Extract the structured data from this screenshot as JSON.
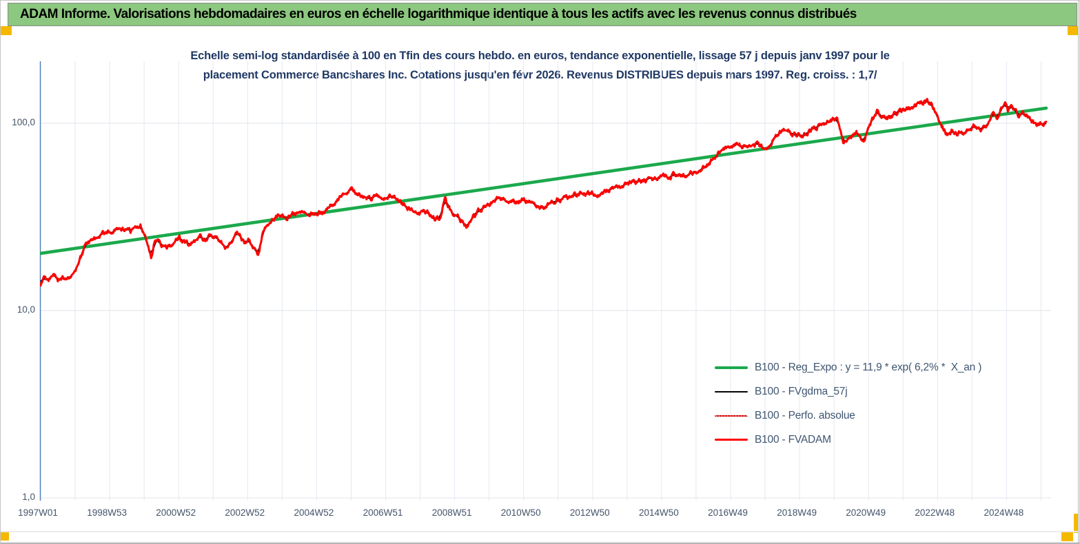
{
  "banner": {
    "title": "ADAM Informe. Valorisations hebdomadaires en euros en échelle logarithmique identique à tous les actifs avec les revenus connus distribués",
    "bg_color": "#8CC87F"
  },
  "chart": {
    "title_line1": "Echelle semi-log standardisée à 100 en Tfin des cours hebdo. en euros, tendance exponentielle, lissage 57 j depuis janv 1997 pour le",
    "title_line2": "placement Commerce Bancshares Inc.  Cotations jusqu'en févr 2026. Revenus DISTRIBUES depuis mars 1997. Reg. croiss. : 1,7/"
  },
  "handles_color": "#F5B800",
  "chart_data": {
    "type": "line",
    "x_axis": {
      "unit": "year",
      "range": [
        1997.0,
        2026.3
      ],
      "gridline_years": [
        1997,
        1998,
        1999,
        2000,
        2001,
        2002,
        2003,
        2004,
        2005,
        2006,
        2007,
        2008,
        2009,
        2010,
        2011,
        2012,
        2013,
        2014,
        2015,
        2016,
        2017,
        2018,
        2019,
        2020,
        2021,
        2022,
        2023,
        2024,
        2025,
        2026
      ],
      "tick_years": [
        1997,
        1999,
        2001,
        2003,
        2005,
        2007,
        2009,
        2011,
        2013,
        2015,
        2017,
        2019,
        2021,
        2023,
        2025
      ],
      "tick_labels": [
        "1997W01",
        "1998W53",
        "2000W52",
        "2002W52",
        "2004W52",
        "2006W51",
        "2008W51",
        "2010W50",
        "2012W50",
        "2014W50",
        "2016W49",
        "2018W49",
        "2020W49",
        "2022W48",
        "2024W48"
      ]
    },
    "y_axis": {
      "scale": "log",
      "range": [
        1,
        214
      ],
      "tick_values": [
        100,
        10,
        1
      ],
      "tick_labels": [
        "100,0",
        "10,0",
        "1,0"
      ]
    },
    "grid": true,
    "legend_position": "inside-right-lower",
    "series": [
      {
        "name": "B100 - Reg_Expo : y = 11,9 * exp( 6,2% *  X_an )",
        "kind": "exponential_trend",
        "color": "#1BA94C",
        "width": 4.6,
        "dash": "solid",
        "points": [
          [
            1997.0,
            20.2
          ],
          [
            2026.15,
            120.5
          ]
        ]
      },
      {
        "name": "B100 - FVgdma_57j",
        "kind": "moving_average_of_FVADAM_57d",
        "color": "#000000",
        "width": 2.2,
        "dash": "solid"
      },
      {
        "name": "B100 - Perfo. absolue",
        "kind": "same_values_as_FVADAM",
        "color": "#D40000",
        "width": 1.2,
        "dash": "dotted"
      },
      {
        "name": "B100 - FVADAM",
        "kind": "weekly_values",
        "color": "#FF0000",
        "width": 3,
        "dash": "solid",
        "points": [
          [
            1997.0,
            13.8
          ],
          [
            1997.1,
            15.0
          ],
          [
            1997.22,
            14.3
          ],
          [
            1997.35,
            15.3
          ],
          [
            1997.5,
            14.6
          ],
          [
            1997.65,
            15.2
          ],
          [
            1997.8,
            14.8
          ],
          [
            1997.95,
            15.6
          ],
          [
            1998.1,
            17.5
          ],
          [
            1998.27,
            21.6
          ],
          [
            1998.5,
            23.5
          ],
          [
            1998.7,
            25.0
          ],
          [
            1998.9,
            26.2
          ],
          [
            1999.14,
            27.5
          ],
          [
            1999.3,
            26.3
          ],
          [
            1999.5,
            27.0
          ],
          [
            1999.7,
            26.3
          ],
          [
            1999.9,
            28.3
          ],
          [
            2000.05,
            24.5
          ],
          [
            2000.2,
            19.4
          ],
          [
            2000.32,
            24.2
          ],
          [
            2000.5,
            22.5
          ],
          [
            2000.68,
            21.6
          ],
          [
            2000.85,
            22.8
          ],
          [
            2001.0,
            24.2
          ],
          [
            2001.15,
            23.2
          ],
          [
            2001.33,
            22.4
          ],
          [
            2001.5,
            23.6
          ],
          [
            2001.62,
            24.6
          ],
          [
            2001.8,
            23.8
          ],
          [
            2002.0,
            25.0
          ],
          [
            2002.2,
            23.5
          ],
          [
            2002.42,
            21.8
          ],
          [
            2002.6,
            24.3
          ],
          [
            2002.72,
            25.7
          ],
          [
            2002.9,
            23.2
          ],
          [
            2003.05,
            24.0
          ],
          [
            2003.3,
            19.6
          ],
          [
            2003.45,
            26.5
          ],
          [
            2003.7,
            30.5
          ],
          [
            2003.9,
            32.0
          ],
          [
            2004.1,
            31.2
          ],
          [
            2004.3,
            32.6
          ],
          [
            2004.5,
            31.8
          ],
          [
            2004.7,
            33.2
          ],
          [
            2004.95,
            32.6
          ],
          [
            2005.2,
            34.0
          ],
          [
            2005.5,
            37.5
          ],
          [
            2005.8,
            41.5
          ],
          [
            2006.0,
            43.5
          ],
          [
            2006.2,
            42.2
          ],
          [
            2006.4,
            40.5
          ],
          [
            2006.6,
            40.0
          ],
          [
            2006.9,
            39.8
          ],
          [
            2007.1,
            41.5
          ],
          [
            2007.25,
            40.2
          ],
          [
            2007.4,
            38.0
          ],
          [
            2007.6,
            35.5
          ],
          [
            2007.8,
            34.5
          ],
          [
            2008.0,
            33.3
          ],
          [
            2008.2,
            32.5
          ],
          [
            2008.4,
            31.5
          ],
          [
            2008.55,
            30.0
          ],
          [
            2008.72,
            41.0
          ],
          [
            2008.8,
            36.0
          ],
          [
            2008.9,
            33.8
          ],
          [
            2009.05,
            32.0
          ],
          [
            2009.2,
            30.5
          ],
          [
            2009.35,
            28.4
          ],
          [
            2009.5,
            31.5
          ],
          [
            2009.7,
            33.5
          ],
          [
            2009.9,
            35.8
          ],
          [
            2010.1,
            38.5
          ],
          [
            2010.3,
            40.7
          ],
          [
            2010.5,
            39.8
          ],
          [
            2010.65,
            39.2
          ],
          [
            2010.8,
            38.0
          ],
          [
            2011.0,
            38.8
          ],
          [
            2011.2,
            38.0
          ],
          [
            2011.4,
            36.5
          ],
          [
            2011.57,
            35.5
          ],
          [
            2011.75,
            37.5
          ],
          [
            2012.0,
            39.5
          ],
          [
            2012.2,
            40.0
          ],
          [
            2012.4,
            40.5
          ],
          [
            2012.6,
            42.0
          ],
          [
            2012.75,
            42.8
          ],
          [
            2012.9,
            41.8
          ],
          [
            2013.1,
            41.5
          ],
          [
            2013.3,
            43.0
          ],
          [
            2013.57,
            45.0
          ],
          [
            2013.8,
            45.5
          ],
          [
            2014.0,
            47.0
          ],
          [
            2014.2,
            48.5
          ],
          [
            2014.4,
            49.2
          ],
          [
            2014.6,
            50.0
          ],
          [
            2014.8,
            50.5
          ],
          [
            2015.0,
            51.5
          ],
          [
            2015.3,
            52.3
          ],
          [
            2015.5,
            52.8
          ],
          [
            2015.7,
            53.2
          ],
          [
            2015.9,
            54.0
          ],
          [
            2016.1,
            55.5
          ],
          [
            2016.25,
            59.4
          ],
          [
            2016.5,
            65.0
          ],
          [
            2016.75,
            72.0
          ],
          [
            2016.9,
            75.5
          ],
          [
            2017.1,
            77.7
          ],
          [
            2017.3,
            75.5
          ],
          [
            2017.55,
            74.5
          ],
          [
            2017.75,
            76.2
          ],
          [
            2018.05,
            73.3
          ],
          [
            2018.3,
            85.0
          ],
          [
            2018.6,
            94.3
          ],
          [
            2018.8,
            88.5
          ],
          [
            2019.1,
            84.5
          ],
          [
            2019.3,
            90.5
          ],
          [
            2019.55,
            95.8
          ],
          [
            2019.75,
            100.5
          ],
          [
            2019.9,
            105.2
          ],
          [
            2020.1,
            103.0
          ],
          [
            2020.26,
            77.7
          ],
          [
            2020.45,
            85.5
          ],
          [
            2020.65,
            89.0
          ],
          [
            2020.85,
            81.7
          ],
          [
            2021.0,
            95.0
          ],
          [
            2021.25,
            114.4
          ],
          [
            2021.4,
            110.5
          ],
          [
            2021.55,
            107.0
          ],
          [
            2021.75,
            112.0
          ],
          [
            2021.95,
            116.0
          ],
          [
            2022.15,
            120.5
          ],
          [
            2022.35,
            124.4
          ],
          [
            2022.55,
            127.5
          ],
          [
            2022.7,
            129.7
          ],
          [
            2022.85,
            123.0
          ],
          [
            2022.95,
            116.0
          ],
          [
            2023.1,
            100.0
          ],
          [
            2023.3,
            86.7
          ],
          [
            2023.45,
            90.5
          ],
          [
            2023.55,
            89.0
          ],
          [
            2023.75,
            88.1
          ],
          [
            2023.9,
            92.1
          ],
          [
            2024.05,
            98.3
          ],
          [
            2024.25,
            91.9
          ],
          [
            2024.45,
            100.0
          ],
          [
            2024.6,
            114.4
          ],
          [
            2024.75,
            107.0
          ],
          [
            2024.95,
            132.0
          ],
          [
            2025.05,
            116.0
          ],
          [
            2025.15,
            126.5
          ],
          [
            2025.35,
            109.7
          ],
          [
            2025.45,
            116.0
          ],
          [
            2025.65,
            107.0
          ],
          [
            2025.85,
            98.3
          ],
          [
            2026.0,
            100.2
          ],
          [
            2026.15,
            100.6
          ]
        ]
      }
    ]
  }
}
